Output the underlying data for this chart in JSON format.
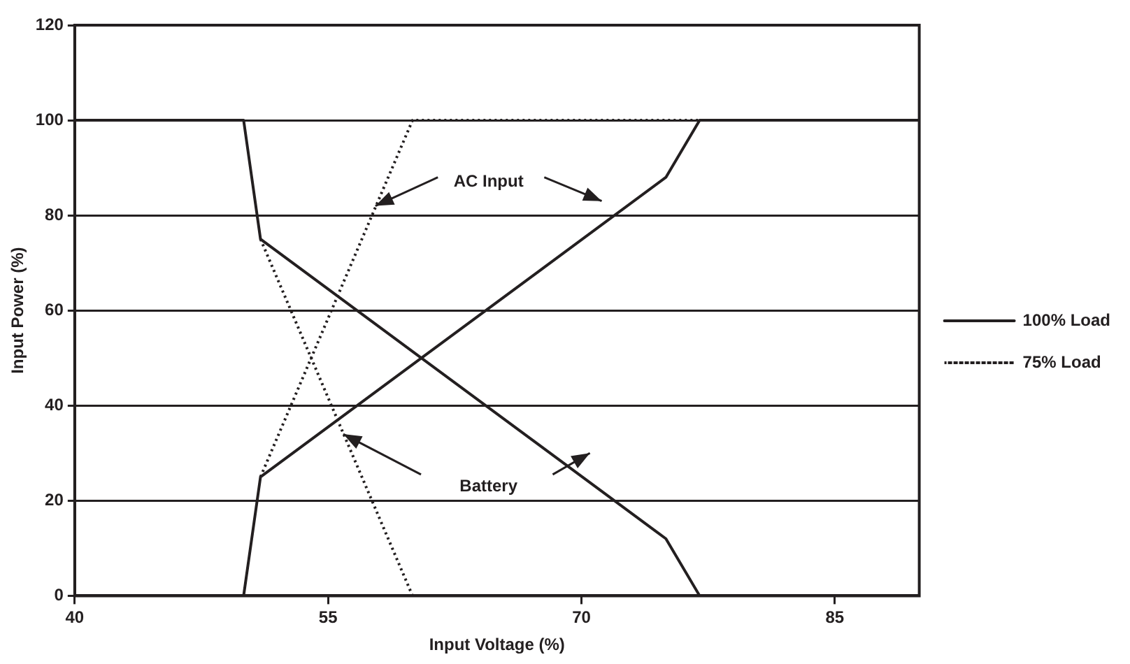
{
  "chart_data": {
    "type": "line",
    "xlabel": "Input Voltage (%)",
    "ylabel": "Input Power (%)",
    "xlim": [
      40,
      90
    ],
    "xticks": [
      40,
      55,
      70,
      85
    ],
    "ylim": [
      0,
      120
    ],
    "yticks": [
      0,
      20,
      40,
      60,
      80,
      100,
      120
    ],
    "grid": "y",
    "legend": "right",
    "marker": "none",
    "annotations": [
      {
        "text": "AC Input",
        "x": 57.8,
        "y": 82
      },
      "Battery"
    ],
    "series": [
      {
        "name": "100% Load",
        "color": "#231f20",
        "line_style": "solid",
        "x": [
          40,
          50,
          51,
          75,
          77,
          90
        ],
        "values": [
          100,
          100,
          75,
          12,
          0,
          0
        ]
      },
      {
        "color": "#231f20",
        "line_style": "solid",
        "x": [
          40,
          50,
          51,
          75,
          77,
          90
        ],
        "values": [
          0,
          0,
          25,
          88,
          100,
          100
        ]
      },
      {
        "name": "75% Load",
        "color": "#231f20",
        "line_style": "dotted",
        "x": [
          51,
          60,
          90
        ],
        "values": [
          75,
          0,
          0
        ]
      },
      {
        "color": "#231f20",
        "line_style": "dotted",
        "x": [
          51,
          60,
          90
        ],
        "values": [
          25,
          100,
          100
        ]
      }
    ]
  }
}
